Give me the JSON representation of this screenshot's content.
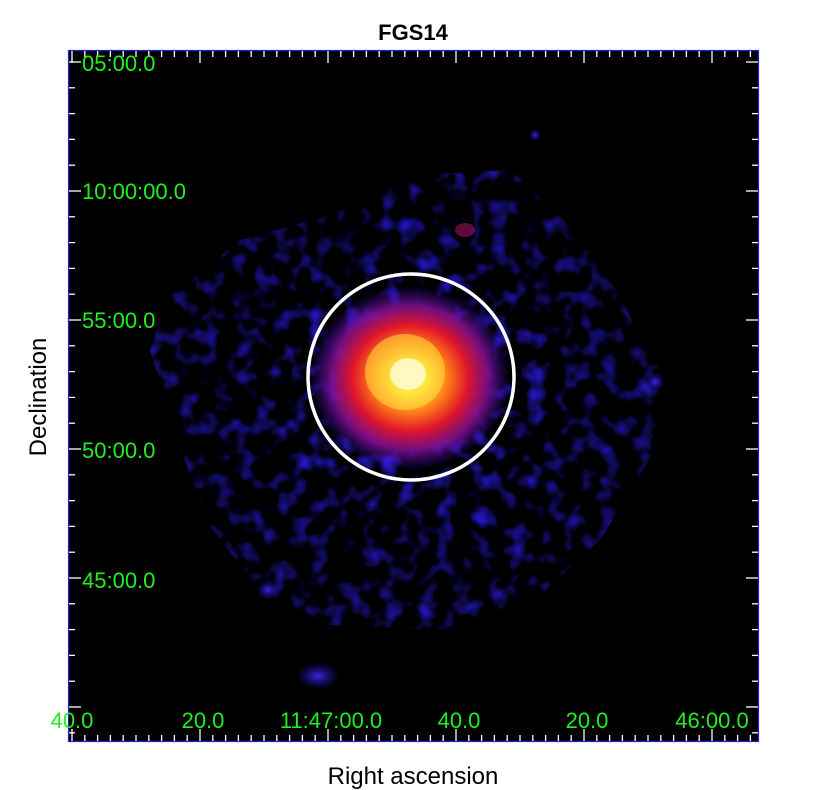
{
  "figure": {
    "title": "FGS14",
    "xlabel": "Right ascension",
    "ylabel": "Declination",
    "ra_ticks": [
      "40.0",
      "20.0",
      "11:47:00.0",
      "40.0",
      "20.0",
      "46:00.0"
    ],
    "dec_ticks": [
      "05:00.0",
      "10:00:00.0",
      "55:00.0",
      "50:00.0",
      "45:00.0"
    ],
    "colors": {
      "background": "#000000",
      "frame": "#1a1aff",
      "tick_label": "#22ee22",
      "aperture_circle": "#ffffff",
      "emission_low": "#2a1aff",
      "emission_mid": "#c8102e",
      "emission_high": "#ffee55"
    }
  }
}
